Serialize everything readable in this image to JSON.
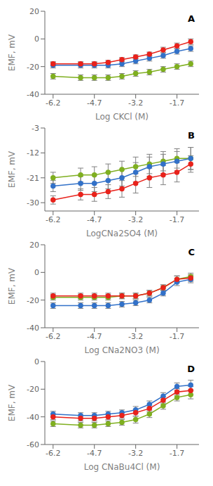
{
  "chart_data": [
    {
      "type": "line",
      "xlabel": "Log CKCl (M)",
      "ylabel": "EMF, mV",
      "annotations": [
        "A"
      ],
      "marker": "circle",
      "x": [
        -6.2,
        -5.2,
        -4.7,
        -4.2,
        -3.7,
        -3.2,
        -2.7,
        -2.2,
        -1.7,
        -1.2
      ],
      "xlim": [
        -6.5,
        -0.9
      ],
      "xticks": [
        -6.2,
        -4.7,
        -3.2,
        -1.7
      ],
      "ylim": [
        -40,
        20
      ],
      "yticks": [
        -40,
        -20,
        0,
        20
      ],
      "series": [
        {
          "color": "#7faf20",
          "values": [
            -27,
            -28,
            -28,
            -28,
            -27,
            -25,
            -24,
            -22,
            -20,
            -18
          ],
          "errors": [
            2.0,
            2.0,
            2.0,
            2.0,
            2.0,
            2.0,
            2.0,
            2.0,
            2.0,
            2.0
          ]
        },
        {
          "color": "#3271c8",
          "values": [
            -19,
            -19,
            -19,
            -19,
            -18,
            -16,
            -14,
            -12,
            -9,
            -7
          ],
          "errors": [
            2.0,
            2.0,
            2.0,
            2.0,
            2.0,
            2.0,
            2.0,
            2.0,
            2.0,
            2.0
          ]
        },
        {
          "color": "#e8221b",
          "values": [
            -18,
            -18,
            -18,
            -17,
            -15,
            -13,
            -11,
            -8,
            -5,
            -2
          ],
          "errors": [
            1.5,
            1.5,
            1.5,
            1.5,
            1.5,
            1.5,
            1.5,
            2.0,
            2.0,
            2.0
          ]
        }
      ]
    },
    {
      "type": "line",
      "xlabel": "LogCNa2SO4 (M)",
      "ylabel": "EMF, mV",
      "annotations": [
        "B"
      ],
      "marker": "circle",
      "x": [
        -6.2,
        -5.2,
        -4.7,
        -4.2,
        -3.7,
        -3.2,
        -2.7,
        -2.2,
        -1.7,
        -1.2
      ],
      "xlim": [
        -6.5,
        -0.9
      ],
      "xticks": [
        -6.2,
        -4.7,
        -3.2,
        -1.7
      ],
      "ylim": [
        -33,
        -3
      ],
      "yticks": [
        -30,
        -21,
        -12,
        -3
      ],
      "series": [
        {
          "color": "#7faf20",
          "values": [
            -21,
            -20,
            -20,
            -19,
            -18,
            -17,
            -16,
            -15,
            -14,
            -14
          ],
          "errors": [
            2.0,
            2.5,
            3.0,
            3.0,
            3.0,
            3.5,
            3.5,
            3.5,
            3.5,
            4.0
          ]
        },
        {
          "color": "#3271c8",
          "values": [
            -24,
            -23,
            -23,
            -22,
            -21,
            -19,
            -17,
            -16,
            -15,
            -14
          ],
          "errors": [
            2.0,
            2.5,
            3.0,
            3.0,
            3.0,
            3.5,
            3.5,
            3.5,
            3.5,
            4.0
          ]
        },
        {
          "color": "#e8221b",
          "values": [
            -29,
            -27,
            -27,
            -26,
            -25,
            -23,
            -21,
            -20,
            -19,
            -16
          ],
          "errors": [
            1.5,
            2.0,
            2.5,
            2.5,
            3.0,
            3.5,
            3.5,
            3.5,
            3.5,
            3.0
          ]
        }
      ]
    },
    {
      "type": "line",
      "xlabel": "Log CNa2NO3 (M)",
      "ylabel": "EMF, mV",
      "annotations": [
        "C"
      ],
      "marker": "circle",
      "x": [
        -6.2,
        -5.2,
        -4.7,
        -4.2,
        -3.7,
        -3.2,
        -2.7,
        -2.2,
        -1.7,
        -1.2
      ],
      "xlim": [
        -6.5,
        -0.9
      ],
      "xticks": [
        -6.2,
        -4.7,
        -3.2,
        -1.7
      ],
      "ylim": [
        -40,
        20
      ],
      "yticks": [
        -40,
        -20,
        0,
        20
      ],
      "series": [
        {
          "color": "#7faf20",
          "values": [
            -18,
            -18,
            -18,
            -18,
            -17,
            -17,
            -15,
            -11,
            -5,
            -3
          ],
          "errors": [
            2.0,
            2.0,
            2.0,
            2.0,
            2.0,
            2.0,
            2.0,
            2.0,
            2.5,
            2.5
          ]
        },
        {
          "color": "#3271c8",
          "values": [
            -24,
            -24,
            -24,
            -24,
            -23,
            -22,
            -20,
            -15,
            -7,
            -5
          ],
          "errors": [
            2.0,
            2.0,
            2.0,
            2.0,
            2.0,
            2.0,
            2.0,
            2.0,
            2.5,
            2.5
          ]
        },
        {
          "color": "#e8221b",
          "values": [
            -17,
            -17,
            -17,
            -17,
            -17,
            -17,
            -15,
            -11,
            -5,
            -4
          ],
          "errors": [
            2.0,
            2.0,
            2.0,
            2.0,
            2.0,
            2.0,
            2.0,
            2.0,
            2.5,
            2.5
          ]
        }
      ]
    },
    {
      "type": "line",
      "xlabel": "Log CNaBu4Cl (M)",
      "ylabel": "EMF, mV",
      "annotations": [
        "D"
      ],
      "marker": "circle",
      "x": [
        -6.2,
        -5.2,
        -4.7,
        -4.2,
        -3.7,
        -3.2,
        -2.7,
        -2.2,
        -1.7,
        -1.2
      ],
      "xlim": [
        -6.5,
        -0.9
      ],
      "xticks": [
        -6.2,
        -4.7,
        -3.2,
        -1.7
      ],
      "ylim": [
        -60,
        0
      ],
      "yticks": [
        -60,
        -40,
        -20,
        0
      ],
      "series": [
        {
          "color": "#7faf20",
          "values": [
            -45,
            -46,
            -46,
            -45,
            -44,
            -42,
            -38,
            -32,
            -26,
            -24
          ],
          "errors": [
            2.0,
            2.0,
            2.0,
            2.0,
            2.0,
            2.5,
            2.5,
            2.5,
            2.5,
            3.0
          ]
        },
        {
          "color": "#3271c8",
          "values": [
            -38,
            -39,
            -39,
            -38,
            -37,
            -35,
            -31,
            -25,
            -18,
            -17
          ],
          "errors": [
            2.0,
            2.0,
            2.0,
            2.0,
            2.0,
            2.5,
            2.5,
            2.5,
            2.5,
            3.5
          ]
        },
        {
          "color": "#e8221b",
          "values": [
            -40,
            -41,
            -41,
            -40,
            -39,
            -37,
            -34,
            -28,
            -22,
            -21
          ],
          "errors": [
            2.0,
            2.0,
            2.0,
            2.0,
            2.0,
            2.5,
            2.5,
            2.5,
            2.5,
            3.0
          ]
        }
      ]
    }
  ]
}
